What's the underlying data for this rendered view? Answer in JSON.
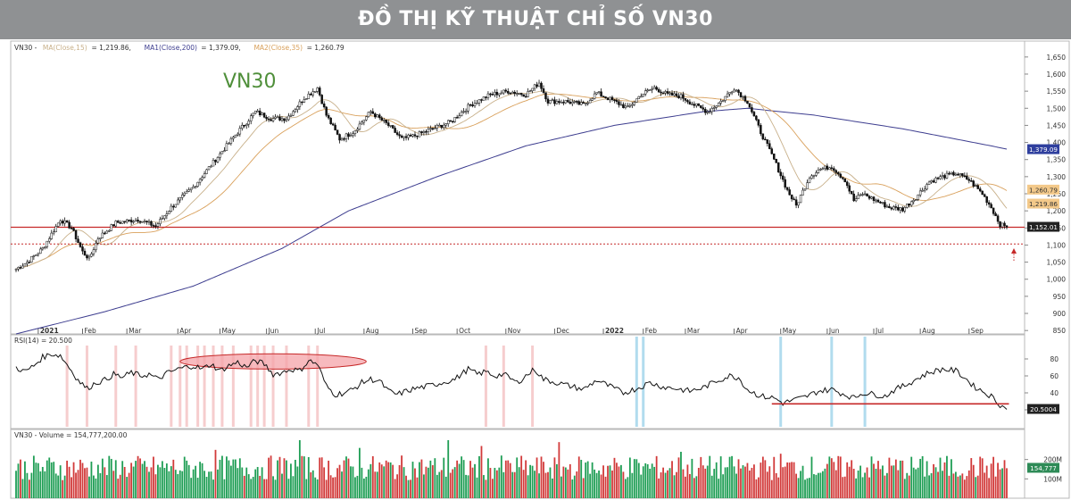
{
  "banner": {
    "title": "ĐỒ THỊ KỸ THUẬT CHỈ SỐ VN30"
  },
  "chart_data": [
    {
      "type": "candlestick",
      "watermark": "VN30",
      "legend": [
        {
          "text": "VN30 - ",
          "color": "#333333"
        },
        {
          "text": "MA(Close,15)",
          "color": "#c8b08a"
        },
        {
          "text": " = 1,219.86, ",
          "color": "#333333"
        },
        {
          "text": "MA1(Close,200)",
          "color": "#3d3d8f"
        },
        {
          "text": " = 1,379.09, ",
          "color": "#333333"
        },
        {
          "text": "MA2(Close,35)",
          "color": "#d9a05b"
        },
        {
          "text": " = 1,260.79",
          "color": "#333333"
        }
      ],
      "ylim": [
        840,
        1660
      ],
      "yticks": [
        {
          "v": 850,
          "label": "850"
        },
        {
          "v": 900,
          "label": "900"
        },
        {
          "v": 950,
          "label": "950"
        },
        {
          "v": 1000,
          "label": "1,000"
        },
        {
          "v": 1050,
          "label": "1,050"
        },
        {
          "v": 1100,
          "label": "1,100"
        },
        {
          "v": 1150,
          "label": "1,150"
        },
        {
          "v": 1200,
          "label": "1,200"
        },
        {
          "v": 1250,
          "label": "1,250"
        },
        {
          "v": 1300,
          "label": "1,300"
        },
        {
          "v": 1350,
          "label": "1,350"
        },
        {
          "v": 1400,
          "label": "1,400"
        },
        {
          "v": 1450,
          "label": "1,450"
        },
        {
          "v": 1500,
          "label": "1,500"
        },
        {
          "v": 1550,
          "label": "1,550"
        },
        {
          "v": 1600,
          "label": "1,600"
        },
        {
          "v": 1650,
          "label": "1,650"
        }
      ],
      "xticks": [
        {
          "i": 10,
          "label": "2021",
          "bold": true
        },
        {
          "i": 30,
          "label": "Feb"
        },
        {
          "i": 50,
          "label": "Mar"
        },
        {
          "i": 73,
          "label": "Apr"
        },
        {
          "i": 92,
          "label": "May"
        },
        {
          "i": 113,
          "label": "Jun"
        },
        {
          "i": 135,
          "label": "Jul"
        },
        {
          "i": 157,
          "label": "Aug"
        },
        {
          "i": 179,
          "label": "Sep"
        },
        {
          "i": 199,
          "label": "Oct"
        },
        {
          "i": 221,
          "label": "Nov"
        },
        {
          "i": 243,
          "label": "Dec"
        },
        {
          "i": 265,
          "label": "2022",
          "bold": true
        },
        {
          "i": 283,
          "label": "Feb"
        },
        {
          "i": 302,
          "label": "Mar"
        },
        {
          "i": 324,
          "label": "Apr"
        },
        {
          "i": 345,
          "label": "May"
        },
        {
          "i": 366,
          "label": "Jun"
        },
        {
          "i": 387,
          "label": "Jul"
        },
        {
          "i": 408,
          "label": "Aug"
        },
        {
          "i": 430,
          "label": "Sep"
        }
      ],
      "price_anchors": [
        [
          0,
          1030
        ],
        [
          5,
          1050
        ],
        [
          12,
          1090
        ],
        [
          20,
          1175
        ],
        [
          25,
          1150
        ],
        [
          30,
          1080
        ],
        [
          33,
          1060
        ],
        [
          37,
          1120
        ],
        [
          45,
          1165
        ],
        [
          55,
          1175
        ],
        [
          63,
          1155
        ],
        [
          70,
          1210
        ],
        [
          80,
          1270
        ],
        [
          90,
          1350
        ],
        [
          100,
          1430
        ],
        [
          108,
          1490
        ],
        [
          115,
          1470
        ],
        [
          122,
          1470
        ],
        [
          130,
          1530
        ],
        [
          136,
          1560
        ],
        [
          140,
          1480
        ],
        [
          146,
          1410
        ],
        [
          152,
          1430
        ],
        [
          160,
          1490
        ],
        [
          168,
          1450
        ],
        [
          174,
          1410
        ],
        [
          180,
          1420
        ],
        [
          188,
          1440
        ],
        [
          196,
          1460
        ],
        [
          205,
          1510
        ],
        [
          214,
          1540
        ],
        [
          222,
          1550
        ],
        [
          230,
          1540
        ],
        [
          236,
          1575
        ],
        [
          240,
          1520
        ],
        [
          248,
          1520
        ],
        [
          256,
          1510
        ],
        [
          262,
          1545
        ],
        [
          270,
          1520
        ],
        [
          276,
          1500
        ],
        [
          282,
          1540
        ],
        [
          288,
          1560
        ],
        [
          294,
          1540
        ],
        [
          300,
          1535
        ],
        [
          306,
          1510
        ],
        [
          312,
          1490
        ],
        [
          318,
          1520
        ],
        [
          324,
          1560
        ],
        [
          330,
          1520
        ],
        [
          336,
          1430
        ],
        [
          342,
          1350
        ],
        [
          348,
          1260
        ],
        [
          352,
          1215
        ],
        [
          358,
          1300
        ],
        [
          362,
          1320
        ],
        [
          368,
          1330
        ],
        [
          374,
          1290
        ],
        [
          378,
          1230
        ],
        [
          382,
          1250
        ],
        [
          388,
          1230
        ],
        [
          394,
          1210
        ],
        [
          400,
          1205
        ],
        [
          406,
          1240
        ],
        [
          412,
          1285
        ],
        [
          418,
          1300
        ],
        [
          424,
          1310
        ],
        [
          430,
          1290
        ],
        [
          436,
          1250
        ],
        [
          440,
          1210
        ],
        [
          444,
          1160
        ],
        [
          447,
          1152
        ]
      ],
      "ma15_last": 1219.86,
      "ma35_last": 1260.79,
      "ma200": [
        [
          0,
          840
        ],
        [
          40,
          905
        ],
        [
          80,
          980
        ],
        [
          120,
          1090
        ],
        [
          150,
          1200
        ],
        [
          190,
          1300
        ],
        [
          230,
          1390
        ],
        [
          270,
          1450
        ],
        [
          310,
          1490
        ],
        [
          330,
          1500
        ],
        [
          360,
          1480
        ],
        [
          400,
          1440
        ],
        [
          440,
          1390
        ],
        [
          448,
          1379.09
        ]
      ],
      "hlines": [
        {
          "v": 1152,
          "style": "solid",
          "color": "#c62828"
        },
        {
          "v": 1103,
          "style": "dotted",
          "color": "#c62828"
        }
      ],
      "value_labels": [
        {
          "v": 1379.09,
          "text": "1,379.09",
          "bg": "#2f3f9e",
          "fg": "#ffffff"
        },
        {
          "v": 1260.79,
          "text": "1,260.79",
          "bg": "#f3c98a",
          "fg": "#333333"
        },
        {
          "v": 1219.86,
          "text": "1,219.86",
          "bg": "#f3c98a",
          "fg": "#333333"
        },
        {
          "v": 1152.01,
          "text": "1,152.01",
          "bg": "#222222",
          "fg": "#ffffff"
        }
      ]
    },
    {
      "type": "line",
      "name": "RSI(14)",
      "legend_text": "RSI(14) = 20.500",
      "ylim": [
        0,
        100
      ],
      "yticks": [
        {
          "v": 20,
          "label": "20"
        },
        {
          "v": 40,
          "label": "40"
        },
        {
          "v": 60,
          "label": "60"
        },
        {
          "v": 80,
          "label": "80"
        }
      ],
      "anchors": [
        [
          0,
          70
        ],
        [
          4,
          65
        ],
        [
          8,
          72
        ],
        [
          12,
          82
        ],
        [
          16,
          86
        ],
        [
          20,
          84
        ],
        [
          24,
          70
        ],
        [
          28,
          55
        ],
        [
          32,
          45
        ],
        [
          36,
          52
        ],
        [
          40,
          55
        ],
        [
          44,
          62
        ],
        [
          48,
          58
        ],
        [
          52,
          64
        ],
        [
          56,
          60
        ],
        [
          60,
          62
        ],
        [
          64,
          56
        ],
        [
          68,
          63
        ],
        [
          72,
          67
        ],
        [
          76,
          70
        ],
        [
          80,
          72
        ],
        [
          84,
          68
        ],
        [
          88,
          74
        ],
        [
          92,
          66
        ],
        [
          96,
          72
        ],
        [
          100,
          76
        ],
        [
          104,
          70
        ],
        [
          108,
          78
        ],
        [
          112,
          74
        ],
        [
          116,
          62
        ],
        [
          120,
          64
        ],
        [
          124,
          68
        ],
        [
          128,
          66
        ],
        [
          132,
          78
        ],
        [
          136,
          74
        ],
        [
          140,
          48
        ],
        [
          144,
          38
        ],
        [
          148,
          40
        ],
        [
          152,
          44
        ],
        [
          156,
          52
        ],
        [
          160,
          56
        ],
        [
          164,
          54
        ],
        [
          168,
          42
        ],
        [
          172,
          38
        ],
        [
          176,
          42
        ],
        [
          180,
          45
        ],
        [
          186,
          48
        ],
        [
          192,
          52
        ],
        [
          198,
          56
        ],
        [
          204,
          68
        ],
        [
          208,
          62
        ],
        [
          212,
          65
        ],
        [
          216,
          60
        ],
        [
          220,
          62
        ],
        [
          226,
          52
        ],
        [
          230,
          60
        ],
        [
          234,
          68
        ],
        [
          238,
          56
        ],
        [
          244,
          52
        ],
        [
          250,
          48
        ],
        [
          256,
          44
        ],
        [
          262,
          55
        ],
        [
          266,
          50
        ],
        [
          270,
          45
        ],
        [
          274,
          40
        ],
        [
          280,
          45
        ],
        [
          286,
          52
        ],
        [
          292,
          47
        ],
        [
          298,
          45
        ],
        [
          304,
          42
        ],
        [
          310,
          46
        ],
        [
          316,
          54
        ],
        [
          322,
          60
        ],
        [
          326,
          58
        ],
        [
          330,
          44
        ],
        [
          336,
          36
        ],
        [
          342,
          34
        ],
        [
          346,
          28
        ],
        [
          350,
          31
        ],
        [
          356,
          35
        ],
        [
          362,
          42
        ],
        [
          368,
          44
        ],
        [
          374,
          38
        ],
        [
          378,
          34
        ],
        [
          382,
          40
        ],
        [
          388,
          38
        ],
        [
          392,
          36
        ],
        [
          396,
          43
        ],
        [
          402,
          50
        ],
        [
          406,
          56
        ],
        [
          412,
          64
        ],
        [
          418,
          68
        ],
        [
          424,
          66
        ],
        [
          428,
          58
        ],
        [
          432,
          48
        ],
        [
          436,
          42
        ],
        [
          440,
          36
        ],
        [
          444,
          26
        ],
        [
          447,
          20.5
        ]
      ],
      "support_line": {
        "i0": 341,
        "i1": 448,
        "v": 27
      },
      "value_label": {
        "text": "20.5004",
        "bg": "#222222",
        "fg": "#ffffff"
      },
      "overbought_bars": [
        23,
        32,
        45,
        54,
        70,
        74,
        77,
        82,
        85,
        89,
        93,
        98,
        106,
        109,
        112,
        116,
        122,
        132,
        136,
        212,
        220,
        233
      ],
      "oversold_bars": [
        280,
        283,
        345,
        368,
        383
      ],
      "highlight_ellipse": {
        "i_center": 116,
        "i_radius": 42,
        "v_center": 77,
        "v_radius": 9
      }
    },
    {
      "type": "bar",
      "name": "Volume",
      "legend_text": "VN30 - Volume = 154,777,200.00",
      "ylim": [
        0,
        300
      ],
      "yticks": [
        {
          "v": 100,
          "label": "100M"
        },
        {
          "v": 200,
          "label": "200M"
        }
      ],
      "last_label": {
        "text": "154,777",
        "bg": "#2e8b57",
        "fg": "#ffffff"
      },
      "base_level": 170,
      "spikes": [
        [
          128,
          300
        ],
        [
          195,
          300
        ],
        [
          245,
          290
        ],
        [
          90,
          250
        ],
        [
          155,
          260
        ],
        [
          210,
          270
        ],
        [
          300,
          240
        ],
        [
          345,
          230
        ]
      ]
    }
  ],
  "colors": {
    "up": "#1f9e55",
    "down": "#d23a3a",
    "candle": "#111111",
    "ma15": "#c8b08a",
    "ma35": "#d9a05b",
    "ma200": "#3d3d8f",
    "grid_bg": "#ffffff",
    "overbought": "#f4c4c6",
    "oversold": "#a9d8ec"
  }
}
